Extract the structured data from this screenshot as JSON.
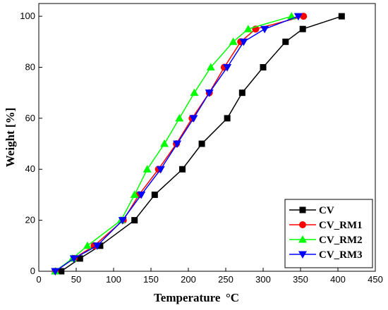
{
  "chart_data": {
    "type": "line",
    "xlabel": "Temperature",
    "xunit": "°C",
    "ylabel": "Weight [%]",
    "xlim": [
      0,
      450
    ],
    "ylim": [
      0,
      105
    ],
    "xticks": [
      0,
      50,
      100,
      150,
      200,
      250,
      300,
      350,
      400,
      450
    ],
    "yticks": [
      0,
      20,
      40,
      60,
      80,
      100
    ],
    "legend_position": "bottom-right",
    "grid": false,
    "series": [
      {
        "name": "CV",
        "color": "#000000",
        "marker": "square",
        "x": [
          22,
          30,
          55,
          82,
          128,
          155,
          192,
          218,
          252,
          272,
          300,
          330,
          353,
          405
        ],
        "y": [
          0,
          0,
          5,
          10,
          20,
          30,
          40,
          50,
          60,
          70,
          80,
          90,
          95,
          100
        ]
      },
      {
        "name": "CV_RM1",
        "color": "#ff0000",
        "marker": "circle",
        "x": [
          22,
          47,
          74,
          113,
          134,
          160,
          184,
          205,
          228,
          248,
          270,
          290,
          354
        ],
        "y": [
          0,
          5,
          10,
          20,
          30,
          40,
          50,
          60,
          70,
          80,
          90,
          95,
          100
        ]
      },
      {
        "name": "CV_RM2",
        "color": "#00ff00",
        "marker": "triangle-up",
        "x": [
          22,
          45,
          65,
          110,
          128,
          145,
          168,
          188,
          208,
          230,
          260,
          280,
          338
        ],
        "y": [
          0,
          5,
          10,
          20,
          30,
          40,
          50,
          60,
          70,
          80,
          90,
          95,
          100
        ]
      },
      {
        "name": "CV_RM3",
        "color": "#0000ff",
        "marker": "triangle-down",
        "x": [
          22,
          47,
          78,
          112,
          137,
          163,
          185,
          207,
          228,
          252,
          274,
          302,
          347
        ],
        "y": [
          0,
          5,
          10,
          20,
          30,
          40,
          50,
          60,
          70,
          80,
          90,
          95,
          100
        ]
      }
    ]
  }
}
